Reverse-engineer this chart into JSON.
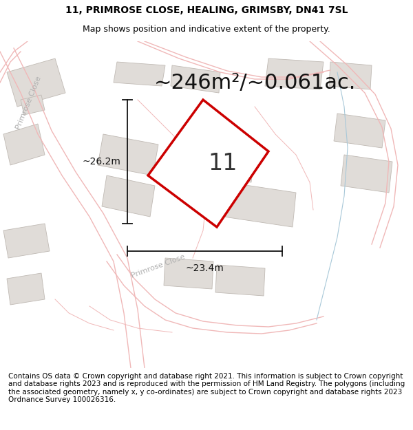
{
  "title_line1": "11, PRIMROSE CLOSE, HEALING, GRIMSBY, DN41 7SL",
  "title_line2": "Map shows position and indicative extent of the property.",
  "area_text": "~246m²/~0.061ac.",
  "plot_number": "11",
  "dim_vertical": "~26.2m",
  "dim_horizontal": "~23.4m",
  "footer_text": "Contains OS data © Crown copyright and database right 2021. This information is subject to Crown copyright and database rights 2023 and is reproduced with the permission of HM Land Registry. The polygons (including the associated geometry, namely x, y co-ordinates) are subject to Crown copyright and database rights 2023 Ordnance Survey 100026316.",
  "map_bg_color": "#f2f0ee",
  "plot_color": "#cc0000",
  "road_color": "#f0b8b8",
  "road_color2": "#c8d8e8",
  "building_color": "#e0dcd8",
  "building_edge": "#c0bab4",
  "title_fontsize": 10,
  "subtitle_fontsize": 9,
  "area_fontsize": 22,
  "number_fontsize": 24,
  "dim_fontsize": 10,
  "footer_fontsize": 7.5,
  "primrose_label_color": "#b0b0b0",
  "primrose_label_size": 8
}
